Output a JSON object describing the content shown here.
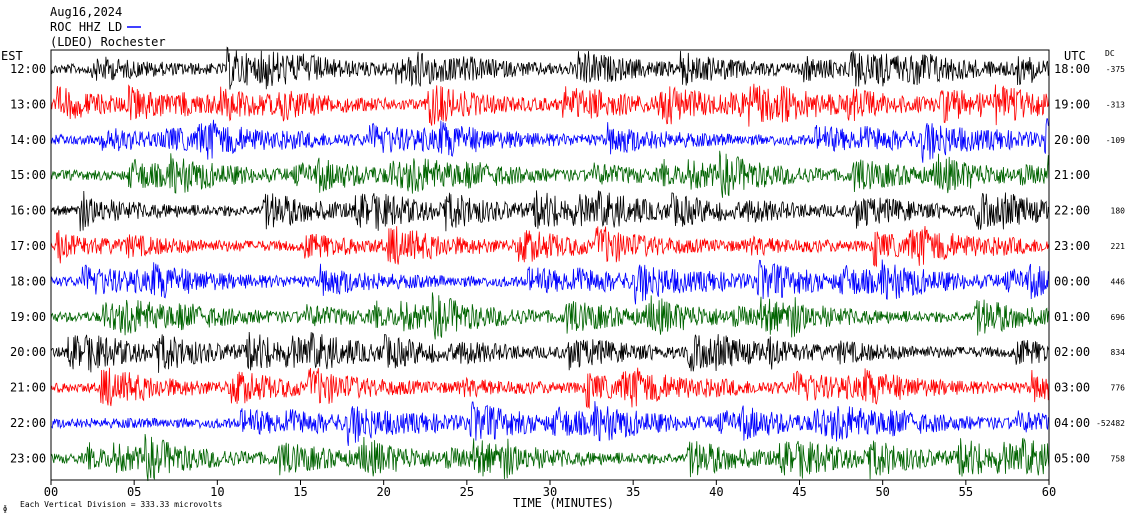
{
  "header": {
    "date": "Aug16,2024",
    "station": "ROC HHZ LD",
    "network": "(LDEO) Rochester"
  },
  "axis": {
    "left_title": "EST",
    "right_title": "UTC",
    "dc_title": "DC",
    "x_title": "TIME (MINUTES)",
    "scale_note": "Each Vertical Division = 333.33 microvolts"
  },
  "colors": {
    "trace_cycle": [
      "#000000",
      "#ff0000",
      "#0000ff",
      "#006400"
    ],
    "frame": "#000000"
  },
  "chart_data": {
    "type": "line",
    "description_type": "helicorder",
    "x_ticks": [
      "00",
      "05",
      "10",
      "15",
      "20",
      "25",
      "30",
      "35",
      "40",
      "45",
      "50",
      "55",
      "60"
    ],
    "xlim": [
      0,
      60
    ],
    "rows": [
      {
        "est": "12:00",
        "utc": "18:00",
        "dc": "-375"
      },
      {
        "est": "13:00",
        "utc": "19:00",
        "dc": "-313"
      },
      {
        "est": "14:00",
        "utc": "20:00",
        "dc": "-109"
      },
      {
        "est": "15:00",
        "utc": "21:00",
        "dc": ""
      },
      {
        "est": "16:00",
        "utc": "22:00",
        "dc": "180"
      },
      {
        "est": "17:00",
        "utc": "23:00",
        "dc": "221"
      },
      {
        "est": "18:00",
        "utc": "00:00",
        "dc": "446"
      },
      {
        "est": "19:00",
        "utc": "01:00",
        "dc": "696"
      },
      {
        "est": "20:00",
        "utc": "02:00",
        "dc": "834"
      },
      {
        "est": "21:00",
        "utc": "03:00",
        "dc": "776"
      },
      {
        "est": "22:00",
        "utc": "04:00",
        "dc": "-52482"
      },
      {
        "est": "23:00",
        "utc": "05:00",
        "dc": "758"
      }
    ]
  }
}
